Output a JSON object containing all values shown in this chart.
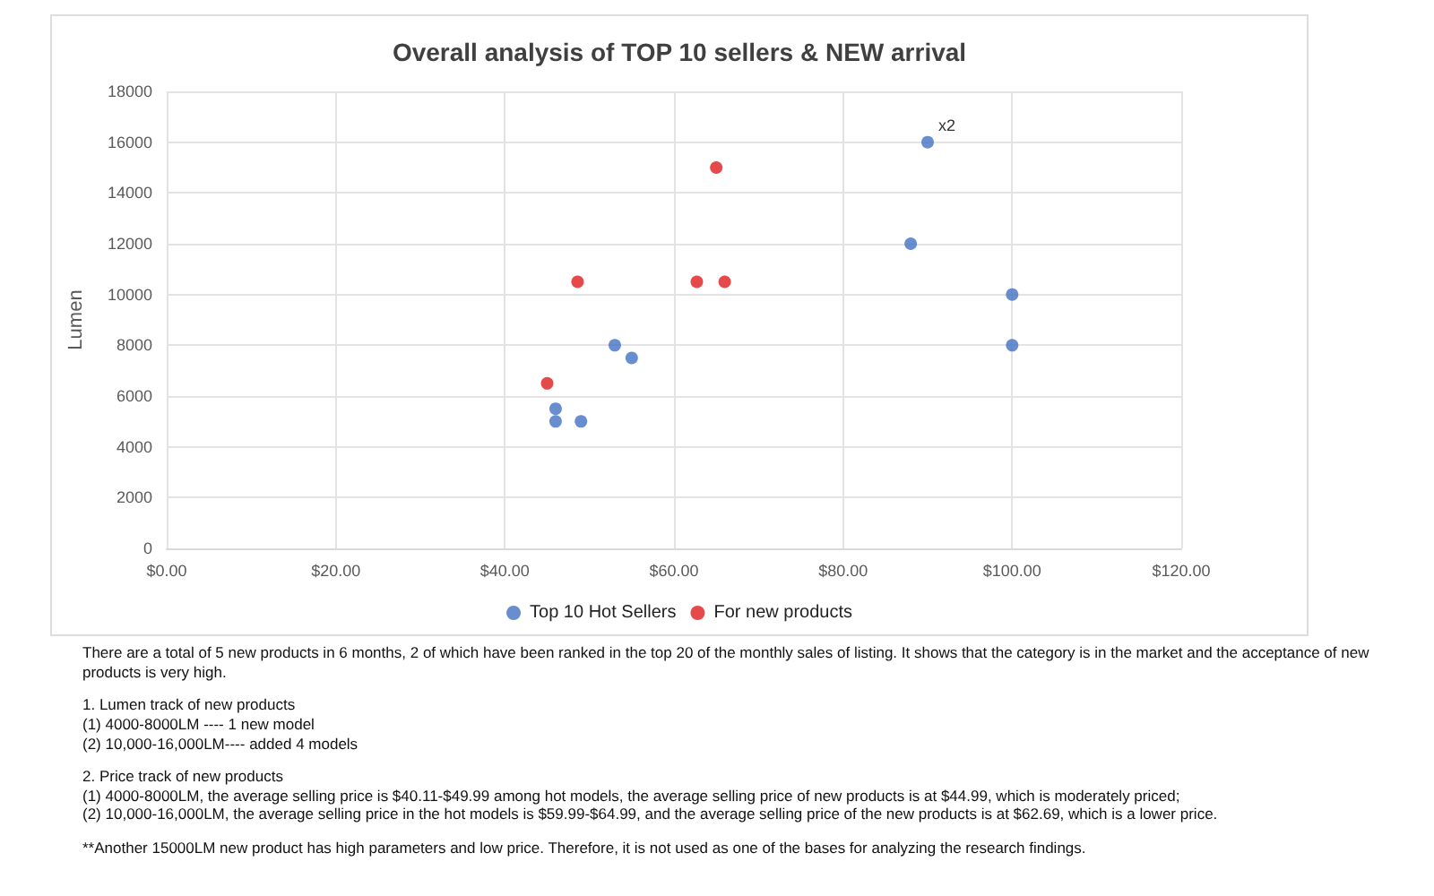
{
  "chart_data": {
    "type": "scatter",
    "title": "Overall analysis of TOP 10 sellers & NEW arrival",
    "ylabel": "Lumen",
    "xlim": [
      0,
      120
    ],
    "xticks": [
      {
        "value": 0,
        "label": "$0.00"
      },
      {
        "value": 20,
        "label": "$20.00"
      },
      {
        "value": 40,
        "label": "$40.00"
      },
      {
        "value": 60,
        "label": "$60.00"
      },
      {
        "value": 80,
        "label": "$80.00"
      },
      {
        "value": 100,
        "label": "$100.00"
      },
      {
        "value": 120,
        "label": "$120.00"
      }
    ],
    "ylim": [
      0,
      18000
    ],
    "yticks": [
      0,
      2000,
      4000,
      6000,
      8000,
      10000,
      12000,
      14000,
      16000,
      18000
    ],
    "grid": true,
    "legend": "bottom",
    "marker": "circle",
    "series": [
      {
        "name": "Top 10 Hot Sellers",
        "color": "#4472c4",
        "x": [
          90,
          88,
          100,
          100,
          53,
          55,
          46,
          46,
          49
        ],
        "values": [
          16000,
          12000,
          10000,
          8000,
          8000,
          7500,
          5500,
          5000,
          5000
        ]
      },
      {
        "name": "For new products",
        "color": "#e01b1b",
        "x": [
          65,
          48.6,
          62.7,
          66,
          45
        ],
        "values": [
          15000,
          10500,
          10500,
          10500,
          6500
        ]
      }
    ],
    "annotations": [
      {
        "text": "x2",
        "x": 90,
        "y": 16000
      },
      "There are a total of 5 new products in 6 months, 2 of which have been ranked in the top 20 of the monthly sales of listing. It shows that the category is in the market and the acceptance of new products is very high.",
      "1. Lumen track of new products\n(1) 4000-8000LM ---- 1 new model\n(2) 10,000-16,000LM---- added 4 models",
      "2. Price track of new products\n(1) 4000-8000LM, the average selling price is $40.11-$49.99 among hot models, the average selling price of new products is at $44.99, which is moderately priced;\n(2) 10,000-16,000LM, the average selling price in the hot models is $59.99-$64.99, and the average selling price of the new products is at $62.69, which is a lower price.",
      "**Another 15000LM new product has high parameters and low price. Therefore, it is not used as one of the bases for analyzing the research findings."
    ]
  }
}
